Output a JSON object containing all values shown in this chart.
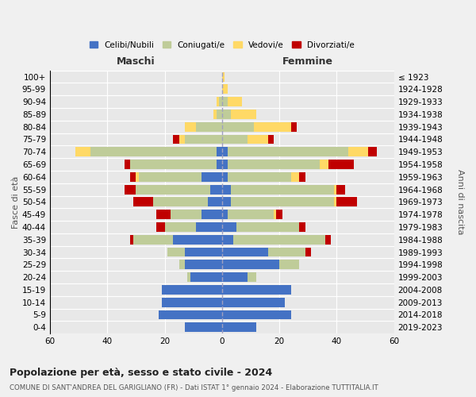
{
  "age_groups": [
    "0-4",
    "5-9",
    "10-14",
    "15-19",
    "20-24",
    "25-29",
    "30-34",
    "35-39",
    "40-44",
    "45-49",
    "50-54",
    "55-59",
    "60-64",
    "65-69",
    "70-74",
    "75-79",
    "80-84",
    "85-89",
    "90-94",
    "95-99",
    "100+"
  ],
  "birth_years": [
    "2019-2023",
    "2014-2018",
    "2009-2013",
    "2004-2008",
    "1999-2003",
    "1994-1998",
    "1989-1993",
    "1984-1988",
    "1979-1983",
    "1974-1978",
    "1969-1973",
    "1964-1968",
    "1959-1963",
    "1954-1958",
    "1949-1953",
    "1944-1948",
    "1939-1943",
    "1934-1938",
    "1929-1933",
    "1924-1928",
    "≤ 1923"
  ],
  "maschi": {
    "celibi": [
      13,
      22,
      21,
      21,
      11,
      13,
      13,
      17,
      9,
      7,
      5,
      4,
      7,
      2,
      2,
      0,
      0,
      0,
      0,
      0,
      0
    ],
    "coniugati": [
      0,
      0,
      0,
      0,
      1,
      2,
      6,
      14,
      11,
      11,
      19,
      26,
      22,
      30,
      44,
      13,
      9,
      2,
      1,
      0,
      0
    ],
    "vedovi": [
      0,
      0,
      0,
      0,
      0,
      0,
      0,
      0,
      0,
      0,
      0,
      0,
      1,
      0,
      5,
      2,
      4,
      1,
      1,
      0,
      0
    ],
    "divorziati": [
      0,
      0,
      0,
      0,
      0,
      0,
      0,
      1,
      3,
      5,
      7,
      4,
      2,
      2,
      0,
      2,
      0,
      0,
      0,
      0,
      0
    ]
  },
  "femmine": {
    "nubili": [
      12,
      24,
      22,
      24,
      9,
      20,
      16,
      4,
      5,
      2,
      3,
      3,
      2,
      2,
      2,
      0,
      0,
      0,
      0,
      0,
      0
    ],
    "coniugate": [
      0,
      0,
      0,
      0,
      3,
      7,
      13,
      32,
      22,
      16,
      36,
      36,
      22,
      32,
      42,
      9,
      11,
      3,
      2,
      0,
      0
    ],
    "vedove": [
      0,
      0,
      0,
      0,
      0,
      0,
      0,
      0,
      0,
      1,
      1,
      1,
      3,
      3,
      7,
      7,
      13,
      9,
      5,
      2,
      1
    ],
    "divorziate": [
      0,
      0,
      0,
      0,
      0,
      0,
      2,
      2,
      2,
      2,
      7,
      3,
      2,
      9,
      3,
      2,
      2,
      0,
      0,
      0,
      0
    ]
  },
  "colors": {
    "celibi_nubili": "#4472C4",
    "coniugati": "#BFCC99",
    "vedovi": "#FFD966",
    "divorziati": "#C00000"
  },
  "title": "Popolazione per età, sesso e stato civile - 2024",
  "subtitle": "COMUNE DI SANT'ANDREA DEL GARIGLIANO (FR) - Dati ISTAT 1° gennaio 2024 - Elaborazione TUTTITALIA.IT",
  "xlabel_left": "Maschi",
  "xlabel_right": "Femmine",
  "ylabel_left": "Fasce di età",
  "ylabel_right": "Anni di nascita",
  "xlim": 60,
  "bg_color": "#f0f0f0",
  "plot_bg_color": "#e8e8e8",
  "grid_color": "#ffffff",
  "legend_labels": [
    "Celibi/Nubili",
    "Coniugati/e",
    "Vedovi/e",
    "Divorziati/e"
  ]
}
